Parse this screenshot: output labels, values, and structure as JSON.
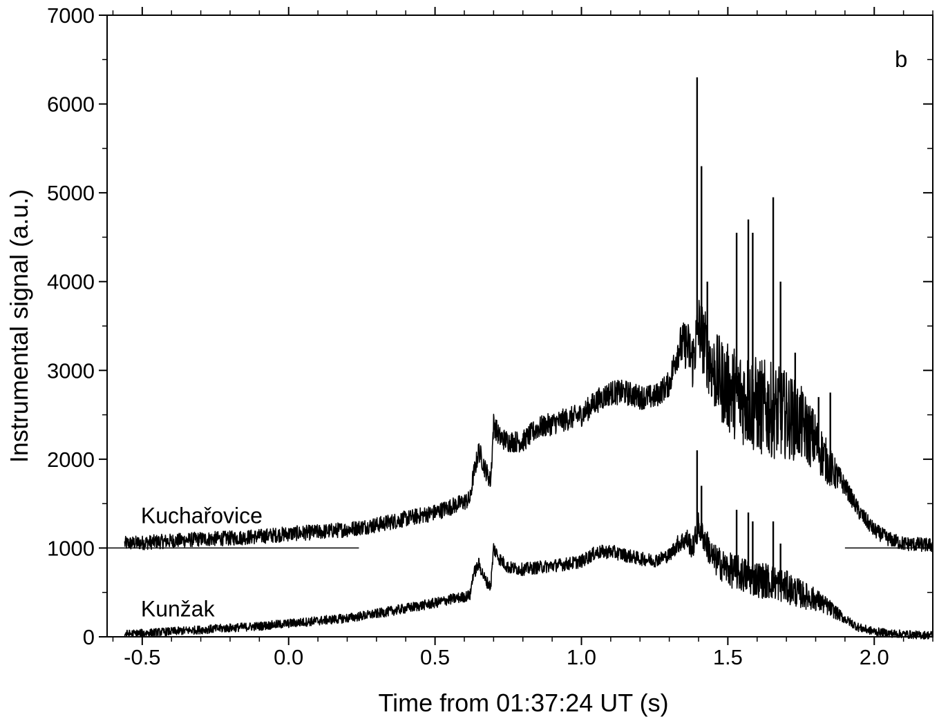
{
  "chart_data": {
    "type": "line",
    "panel_label": "b",
    "xlabel": "Time from 01:37:24 UT (s)",
    "ylabel": "Instrumental signal (a.u.)",
    "xlim": [
      -0.62,
      2.2
    ],
    "ylim": [
      0,
      7000
    ],
    "x_ticks": [
      -0.5,
      0.0,
      0.5,
      1.0,
      1.5,
      2.0
    ],
    "x_tick_labels": [
      "-0.5",
      "0.0",
      "0.5",
      "1.0",
      "1.5",
      "2.0"
    ],
    "y_ticks": [
      0,
      1000,
      2000,
      3000,
      4000,
      5000,
      6000,
      7000
    ],
    "y_tick_labels": [
      "0",
      "1000",
      "2000",
      "3000",
      "4000",
      "5000",
      "6000",
      "7000"
    ],
    "grid": false,
    "baselines": [
      {
        "series": "Kuchařovice",
        "y": 1000,
        "segments": [
          [
            -0.62,
            0.24
          ],
          [
            1.9,
            2.2
          ]
        ]
      }
    ],
    "series": [
      {
        "name": "Kuchařovice",
        "label_position_x": -0.5,
        "label_position_y": 1450,
        "envelope": {
          "x": [
            -0.56,
            -0.5,
            -0.4,
            -0.3,
            -0.2,
            -0.1,
            0.0,
            0.1,
            0.2,
            0.3,
            0.4,
            0.5,
            0.55,
            0.6,
            0.62,
            0.63,
            0.65,
            0.67,
            0.69,
            0.7,
            0.72,
            0.75,
            0.8,
            0.85,
            0.9,
            0.95,
            1.0,
            1.05,
            1.1,
            1.15,
            1.2,
            1.25,
            1.3,
            1.33,
            1.36,
            1.38,
            1.4,
            1.45,
            1.5,
            1.55,
            1.6,
            1.65,
            1.7,
            1.75,
            1.8,
            1.85,
            1.9,
            1.95,
            2.0,
            2.05,
            2.1,
            2.15,
            2.2
          ],
          "y": [
            1050,
            1060,
            1080,
            1100,
            1110,
            1130,
            1160,
            1180,
            1210,
            1260,
            1330,
            1400,
            1460,
            1520,
            1550,
            1800,
            2100,
            1900,
            1750,
            2400,
            2250,
            2200,
            2200,
            2350,
            2400,
            2450,
            2500,
            2650,
            2750,
            2750,
            2700,
            2700,
            2850,
            3250,
            3300,
            3100,
            3500,
            3000,
            2800,
            2700,
            2600,
            2550,
            2500,
            2400,
            2200,
            1900,
            1700,
            1400,
            1200,
            1100,
            1050,
            1040,
            1030
          ]
        },
        "spikes": [
          {
            "x": 1.395,
            "y": 6300
          },
          {
            "x": 1.41,
            "y": 5300
          },
          {
            "x": 1.43,
            "y": 4000
          },
          {
            "x": 1.53,
            "y": 4550
          },
          {
            "x": 1.57,
            "y": 4700
          },
          {
            "x": 1.585,
            "y": 4550
          },
          {
            "x": 1.655,
            "y": 4950
          },
          {
            "x": 1.68,
            "y": 4000
          },
          {
            "x": 1.73,
            "y": 3200
          },
          {
            "x": 1.81,
            "y": 2700
          },
          {
            "x": 1.85,
            "y": 2750
          }
        ]
      },
      {
        "name": "Kunžak",
        "label_position_x": -0.5,
        "label_position_y": 400,
        "envelope": {
          "x": [
            -0.56,
            -0.5,
            -0.4,
            -0.3,
            -0.2,
            -0.1,
            0.0,
            0.1,
            0.2,
            0.3,
            0.4,
            0.5,
            0.55,
            0.6,
            0.62,
            0.63,
            0.65,
            0.67,
            0.69,
            0.7,
            0.72,
            0.75,
            0.8,
            0.85,
            0.9,
            0.95,
            1.0,
            1.05,
            1.1,
            1.15,
            1.2,
            1.25,
            1.3,
            1.33,
            1.36,
            1.38,
            1.4,
            1.45,
            1.5,
            1.55,
            1.6,
            1.65,
            1.7,
            1.75,
            1.8,
            1.85,
            1.9,
            1.95,
            2.0,
            2.05,
            2.1,
            2.15,
            2.2
          ],
          "y": [
            30,
            40,
            60,
            80,
            100,
            120,
            150,
            180,
            210,
            260,
            320,
            380,
            420,
            450,
            470,
            700,
            820,
            650,
            560,
            1000,
            880,
            780,
            760,
            780,
            800,
            820,
            850,
            950,
            960,
            920,
            880,
            860,
            920,
            1050,
            1100,
            1000,
            1250,
            880,
            760,
            700,
            650,
            620,
            560,
            480,
            420,
            320,
            200,
            100,
            60,
            40,
            30,
            20,
            20
          ]
        },
        "spikes": [
          {
            "x": 1.395,
            "y": 2100
          },
          {
            "x": 1.41,
            "y": 1700
          },
          {
            "x": 1.53,
            "y": 1430
          },
          {
            "x": 1.57,
            "y": 1400
          },
          {
            "x": 1.585,
            "y": 1300
          },
          {
            "x": 1.655,
            "y": 1300
          },
          {
            "x": 1.68,
            "y": 1050
          }
        ]
      }
    ]
  }
}
